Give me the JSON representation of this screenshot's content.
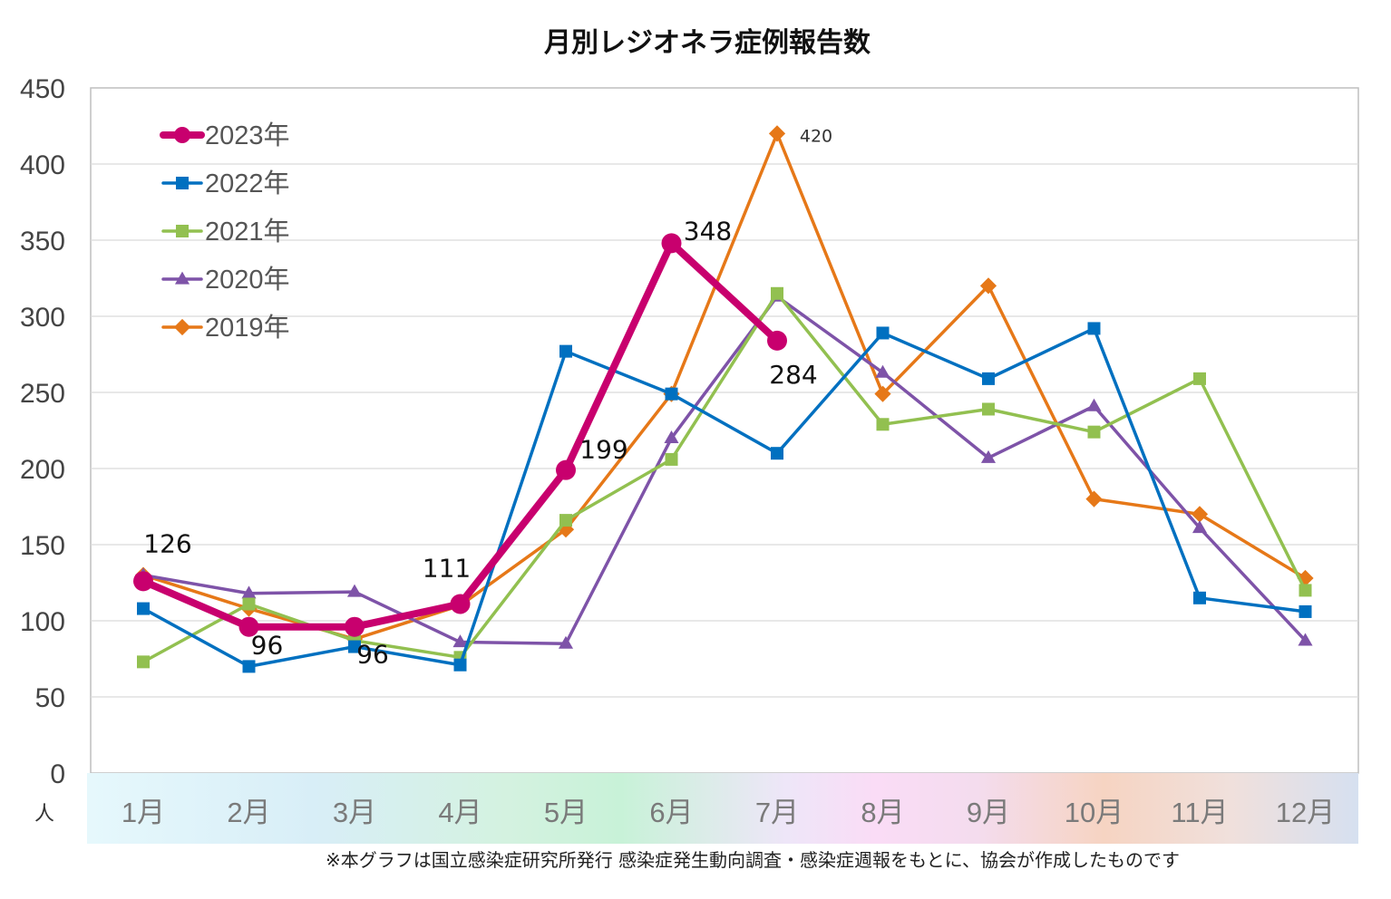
{
  "chart_data": {
    "type": "line",
    "title": "月別レジオネラ症例報告数",
    "unit_label": "人",
    "categories": [
      "1月",
      "2月",
      "3月",
      "4月",
      "5月",
      "6月",
      "7月",
      "8月",
      "9月",
      "10月",
      "11月",
      "12月"
    ],
    "ylim": [
      0,
      450
    ],
    "yticks": [
      0,
      50,
      100,
      150,
      200,
      250,
      300,
      350,
      400,
      450
    ],
    "grid": true,
    "legend_position": "top-left",
    "series": [
      {
        "name": "2023年",
        "color": "#C8006E",
        "marker": "circle",
        "values": [
          126,
          96,
          96,
          111,
          199,
          348,
          284,
          null,
          null,
          null,
          null,
          null
        ]
      },
      {
        "name": "2022年",
        "color": "#0070C0",
        "marker": "square",
        "values": [
          108,
          70,
          83,
          71,
          277,
          249,
          210,
          289,
          259,
          292,
          115,
          106
        ]
      },
      {
        "name": "2021年",
        "color": "#92C050",
        "marker": "square",
        "values": [
          73,
          111,
          87,
          76,
          166,
          206,
          315,
          229,
          239,
          224,
          259,
          120
        ]
      },
      {
        "name": "2020年",
        "color": "#7E53A8",
        "marker": "triangle",
        "values": [
          130,
          118,
          119,
          86,
          85,
          220,
          313,
          263,
          207,
          241,
          161,
          87
        ]
      },
      {
        "name": "2019年",
        "color": "#E67818",
        "marker": "diamond",
        "values": [
          130,
          108,
          88,
          110,
          160,
          249,
          420,
          249,
          320,
          180,
          170,
          128
        ]
      }
    ],
    "data_labels": [
      {
        "series": "2023年",
        "category": "1月",
        "text": "126"
      },
      {
        "series": "2023年",
        "category": "2月",
        "text": "96"
      },
      {
        "series": "2023年",
        "category": "3月",
        "text": "96"
      },
      {
        "series": "2023年",
        "category": "4月",
        "text": "111"
      },
      {
        "series": "2023年",
        "category": "5月",
        "text": "199"
      },
      {
        "series": "2023年",
        "category": "6月",
        "text": "348"
      },
      {
        "series": "2023年",
        "category": "7月",
        "text": "284"
      },
      {
        "series": "2019年",
        "category": "7月",
        "text": "420"
      }
    ]
  },
  "footnote": "※本グラフは国立感染症研究所発行 感染症発生動向調査・感染症週報をもとに、協会が作成したものです"
}
